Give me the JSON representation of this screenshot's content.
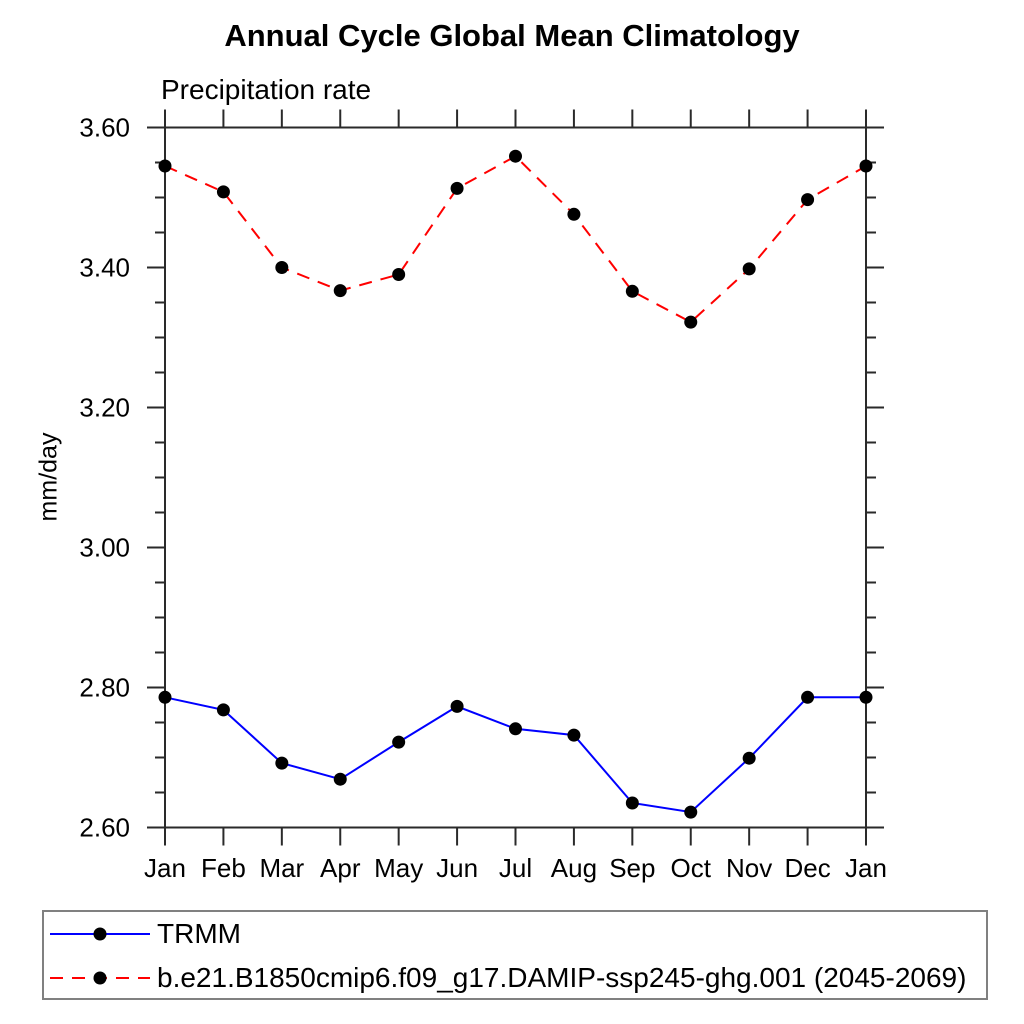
{
  "chart_data": {
    "type": "line",
    "title": "Annual Cycle Global Mean Climatology",
    "subtitle": "Precipitation rate",
    "ylabel": "mm/day",
    "xlabel": "",
    "x_categories": [
      "Jan",
      "Feb",
      "Mar",
      "Apr",
      "May",
      "Jun",
      "Jul",
      "Aug",
      "Sep",
      "Oct",
      "Nov",
      "Dec",
      "Jan"
    ],
    "ylim": [
      2.6,
      3.6
    ],
    "ytick_major_step": 0.2,
    "ytick_minor_step": 0.05,
    "ytick_labels": [
      "3.60",
      "3.40",
      "3.20",
      "3.00",
      "2.80",
      "2.60"
    ],
    "grid": false,
    "legend_position": "bottom-left-boxed",
    "series": [
      {
        "name": "TRMM",
        "line_color": "#0000ff",
        "line_style": "solid",
        "marker": "filled-circle",
        "marker_color": "#000000",
        "values": [
          2.786,
          2.768,
          2.692,
          2.669,
          2.722,
          2.773,
          2.741,
          2.732,
          2.635,
          2.622,
          2.699,
          2.786,
          2.786
        ]
      },
      {
        "name": "b.e21.B1850cmip6.f09_g17.DAMIP-ssp245-ghg.001 (2045-2069)",
        "line_color": "#ff0000",
        "line_style": "dashed",
        "marker": "filled-circle",
        "marker_color": "#000000",
        "values": [
          3.545,
          3.508,
          3.4,
          3.367,
          3.39,
          3.513,
          3.559,
          3.476,
          3.366,
          3.322,
          3.398,
          3.497,
          3.545
        ]
      }
    ]
  },
  "colors": {
    "axis": "#2a2a2a",
    "legend_border": "#808080",
    "background": "#ffffff"
  }
}
